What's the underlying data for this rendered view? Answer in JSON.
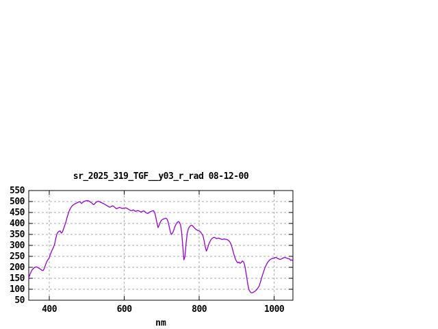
{
  "window": {
    "background": "#ffffff"
  },
  "chart_data": {
    "type": "line",
    "title": "sr_2025_319_TGF__y03_r_rad 08-12-00",
    "xlabel": "nm",
    "ylabel": "",
    "xlim": [
      345,
      1050
    ],
    "ylim": [
      50,
      550
    ],
    "x_ticks": [
      400,
      600,
      800,
      1000
    ],
    "y_ticks": [
      50,
      100,
      150,
      200,
      250,
      300,
      350,
      400,
      450,
      500,
      550
    ],
    "grid": "dashed",
    "grid_color": "#aaaaaa",
    "axis_color": "#000000",
    "background_color": "#ffffff",
    "legend_position": "none",
    "series": [
      {
        "name": "sr_2025_319_TGF__y03_r_rad 08-12-00",
        "color": "#9400D3",
        "x_start": 345,
        "x_step": 3,
        "y": [
          152,
          166,
          179,
          188,
          194,
          198,
          201,
          202,
          199,
          196,
          193,
          189,
          185,
          187,
          197,
          212,
          226,
          234,
          241,
          256,
          270,
          281,
          291,
          306,
          330,
          352,
          360,
          364,
          366,
          356,
          361,
          376,
          391,
          406,
          425,
          442,
          457,
          468,
          476,
          482,
          486,
          489,
          492,
          494,
          497,
          499,
          497,
          491,
          496,
          500,
          502,
          503,
          504,
          503,
          501,
          497,
          494,
          488,
          486,
          492,
          497,
          500,
          501,
          499,
          496,
          494,
          492,
          489,
          486,
          483,
          480,
          477,
          474,
          476,
          479,
          480,
          476,
          471,
          467,
          469,
          472,
          473,
          471,
          468,
          469,
          470,
          471,
          470,
          467,
          464,
          461,
          458,
          459,
          462,
          458,
          455,
          457,
          459,
          457,
          454,
          452,
          455,
          457,
          456,
          450,
          447,
          446,
          450,
          453,
          455,
          457,
          458,
          450,
          430,
          403,
          381,
          392,
          405,
          414,
          418,
          421,
          422,
          424,
          420,
          407,
          385,
          360,
          350,
          357,
          370,
          385,
          396,
          404,
          408,
          406,
          395,
          360,
          300,
          234,
          250,
          312,
          355,
          375,
          385,
          390,
          392,
          388,
          382,
          377,
          372,
          369,
          367,
          365,
          360,
          352,
          344,
          322,
          294,
          274,
          286,
          303,
          315,
          325,
          331,
          335,
          337,
          334,
          331,
          332,
          333,
          331,
          329,
          327,
          328,
          329,
          328,
          327,
          325,
          321,
          315,
          304,
          288,
          269,
          251,
          236,
          226,
          220,
          224,
          218,
          222,
          229,
          226,
          212,
          184,
          151,
          119,
          97,
          88,
          84,
          84,
          87,
          90,
          94,
          99,
          107,
          115,
          131,
          149,
          166,
          181,
          196,
          208,
          218,
          226,
          232,
          236,
          239,
          241,
          242,
          244,
          245,
          242,
          239,
          237,
          236,
          239,
          242,
          244,
          245,
          243,
          241,
          239,
          238,
          232,
          234,
          229
        ]
      }
    ]
  }
}
